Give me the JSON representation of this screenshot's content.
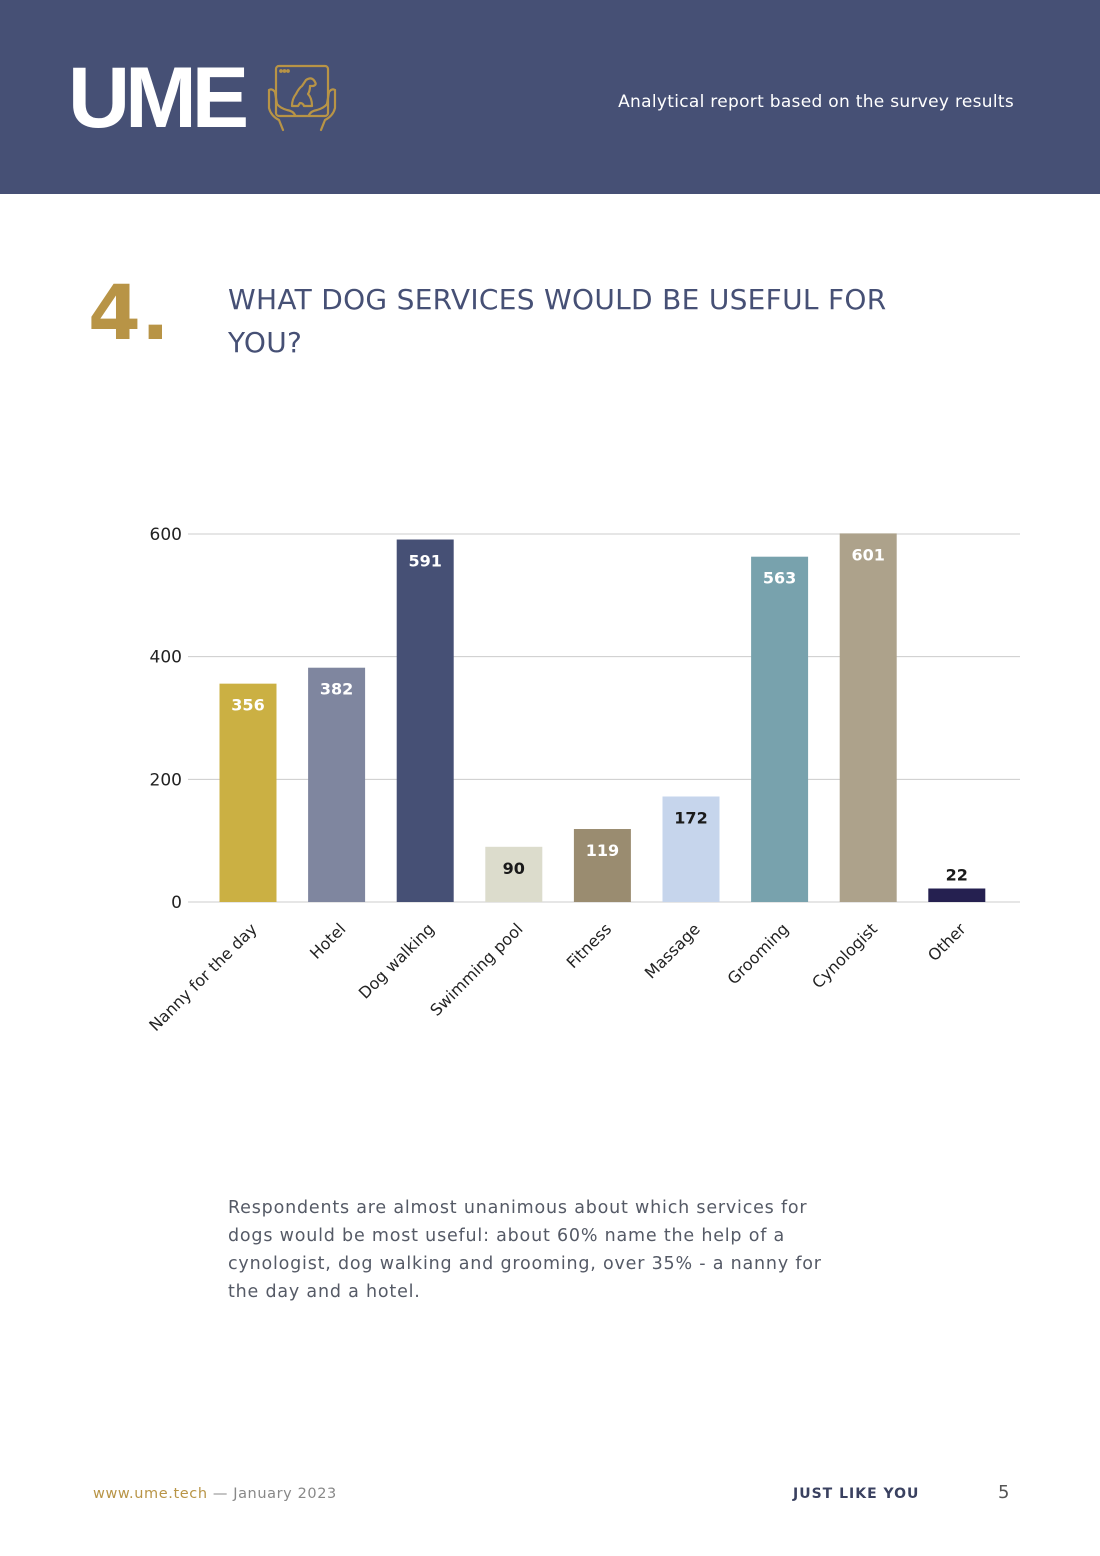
{
  "header": {
    "logo_text": "UME",
    "logo_icon": "dog-on-tablet-hands-icon",
    "subtitle": "Analytical report based on the survey results",
    "background_color": "#465075",
    "accent_color": "#b89446"
  },
  "question": {
    "number": "4.",
    "title": "WHAT DOG SERVICES WOULD BE USEFUL FOR YOU?"
  },
  "chart_data": {
    "type": "bar",
    "title": "",
    "xlabel": "",
    "ylabel": "",
    "ylim": [
      0,
      600
    ],
    "yticks": [
      0,
      200,
      400,
      600
    ],
    "grid": true,
    "legend": "none",
    "categories": [
      "Nanny for the day",
      "Hotel",
      "Dog walking",
      "Swimming pool",
      "Fitness",
      "Massage",
      "Grooming",
      "Cynologist",
      "Other"
    ],
    "values": [
      356,
      382,
      591,
      90,
      119,
      172,
      563,
      601,
      22
    ],
    "colors": [
      "#cbb043",
      "#7f869f",
      "#465075",
      "#dcdccc",
      "#9a8c70",
      "#c6d5ec",
      "#78a2ad",
      "#ada28b",
      "#252050"
    ],
    "label_colors": [
      "#ffffff",
      "#ffffff",
      "#ffffff",
      "#1a1a1a",
      "#ffffff",
      "#1a1a1a",
      "#ffffff",
      "#ffffff",
      "#1a1a1a"
    ],
    "data_labels": [
      "356",
      "382",
      "591",
      "90",
      "119",
      "172",
      "563",
      "601",
      "22"
    ]
  },
  "description": "Respondents are almost unanimous about which services for dogs would be most useful: about 60% name the help of a cynologist, dog walking and grooming, over 35% - a nanny for the day and a hotel.",
  "footer": {
    "url": "www.ume.tech",
    "date": " — January 2023",
    "tagline": "JUST LIKE YOU",
    "page_number": "5"
  }
}
